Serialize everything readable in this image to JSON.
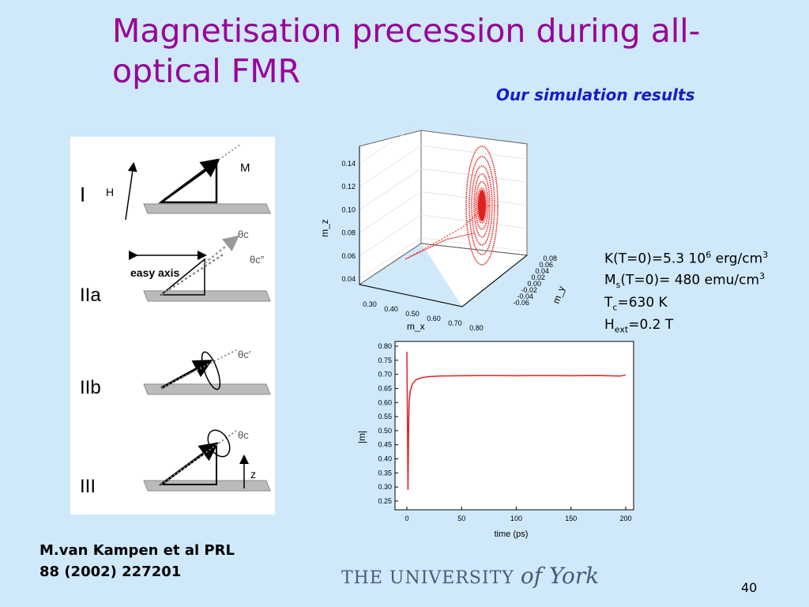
{
  "slide": {
    "title": "Magnetisation precession during all-optical FMR",
    "subtitle": "Our simulation results",
    "page_number": "40",
    "citation": [
      "M.van Kampen et al PRL",
      "88 (2002) 227201"
    ],
    "logo": {
      "prefix": "THE UNIVERSITY",
      "suffix": "of York"
    },
    "colors": {
      "background": "#cfe9fb",
      "title": "#990099",
      "subtitle": "#1a1acc",
      "series": "#e02020"
    }
  },
  "parameters": [
    {
      "name": "K",
      "paren": "(T=0)",
      "value": "=5.3 10",
      "sup": "6",
      "unit": " erg/cm",
      "unit_sup": "3"
    },
    {
      "name": "M",
      "sub": "s",
      "paren": "(T=0)",
      "value": "= 480 emu/cm",
      "unit_sup": "3"
    },
    {
      "name": "T",
      "sub": "c",
      "value": "=630 K"
    },
    {
      "name": "H",
      "sub": "ext",
      "value": "=0.2 T"
    }
  ],
  "diagram": {
    "stages": [
      "I",
      "IIa",
      "IIb",
      "III"
    ],
    "labels": {
      "M": "M",
      "H": "H",
      "easy_axis": "easy axis",
      "theta_c": "θc",
      "theta_c_prime": "θc′",
      "theta_c_double": "θc″",
      "z": "z"
    }
  },
  "chart_data": [
    {
      "type": "scatter",
      "title": "",
      "xlabel": "m_x",
      "ylabel": "m_y",
      "zlabel": "m_z",
      "x_ticks": [
        "0.30",
        "0.40",
        "0.50",
        "0.60",
        "0.70",
        "0.80"
      ],
      "y_ticks": [
        "0.08",
        "0.06",
        "0.04",
        "0.02",
        "0.00",
        "-0.02",
        "-0.04",
        "-0.06"
      ],
      "z_ticks": [
        "0.14",
        "0.12",
        "0.10",
        "0.08",
        "0.06",
        "0.04"
      ],
      "series": [
        {
          "trajectory": "initial trajectory from m_x≈0.3 to precession cone",
          "points": [
            [
              0.3,
              0.0,
              0.06
            ],
            [
              0.45,
              0.02,
              0.075
            ],
            [
              0.6,
              0.04,
              0.09
            ],
            [
              0.7,
              0.05,
              0.1
            ]
          ]
        },
        {
          "trajectory": "precession ellipses centred near m_z≈0.10",
          "center": [
            0.7,
            0.05,
            0.1
          ]
        }
      ]
    },
    {
      "type": "line",
      "title": "",
      "xlabel": "time (ps)",
      "ylabel": "|m|",
      "xlim": [
        0,
        200
      ],
      "ylim": [
        0.25,
        0.8
      ],
      "x_ticks": [
        0,
        50,
        100,
        150,
        200
      ],
      "y_ticks": [
        "0.25",
        "0.30",
        "0.35",
        "0.40",
        "0.45",
        "0.50",
        "0.55",
        "0.60",
        "0.65",
        "0.70",
        "0.75",
        "0.80"
      ],
      "x": [
        0,
        0.5,
        1,
        1.5,
        2,
        3,
        5,
        8,
        12,
        20,
        30,
        50,
        75,
        100,
        125,
        150,
        175,
        195,
        200
      ],
      "values": [
        0.78,
        0.55,
        0.29,
        0.48,
        0.6,
        0.64,
        0.665,
        0.68,
        0.687,
        0.692,
        0.694,
        0.695,
        0.696,
        0.695,
        0.696,
        0.695,
        0.696,
        0.694,
        0.698
      ]
    }
  ]
}
